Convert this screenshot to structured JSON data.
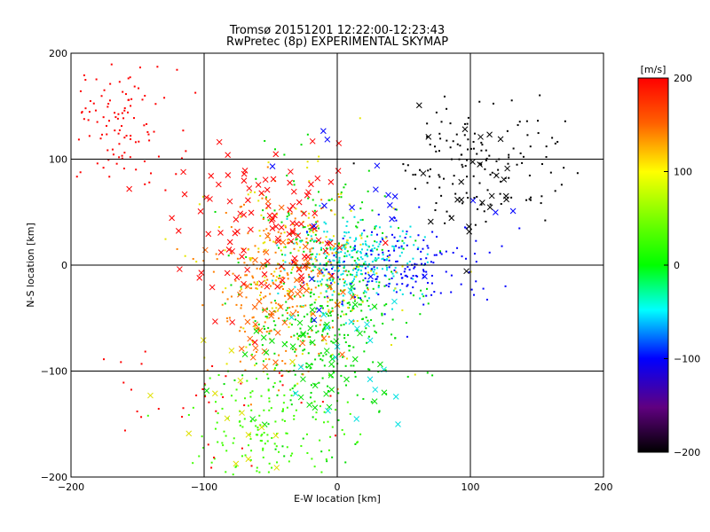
{
  "chart_data": {
    "type": "scatter",
    "title": "Tromsø 20151201 12:22:00-12:23:43",
    "subtitle": "RwPretec (8p) EXPERIMENTAL SKYMAP",
    "xlabel": "E-W location [km]",
    "ylabel": "N-S location [km]",
    "xlim": [
      -200,
      200
    ],
    "ylim": [
      -200,
      200
    ],
    "xticks": [
      -200,
      -100,
      0,
      100,
      200
    ],
    "yticks": [
      -200,
      -100,
      0,
      100,
      200
    ],
    "xtick_labels": [
      "−200",
      "−100",
      "0",
      "100",
      "200"
    ],
    "ytick_labels": [
      "−200",
      "−100",
      "0",
      "100",
      "200"
    ],
    "grid": true,
    "colorbar": {
      "label": "[m/s]",
      "range": [
        -200,
        200
      ],
      "ticks": [
        200,
        100,
        0,
        -100,
        -200
      ],
      "tick_labels": [
        "200",
        "100",
        "0",
        "−100",
        "−200"
      ]
    },
    "clusters": [
      {
        "name": "cluster-red-nw",
        "marker": "dot",
        "color": "#ff0000",
        "cx": -165,
        "cy": 130,
        "sx": 22,
        "sy": 28,
        "n": 110
      },
      {
        "name": "cluster-black-ne",
        "marker": "dot",
        "color": "#000000",
        "cx": 110,
        "cy": 100,
        "sx": 30,
        "sy": 30,
        "n": 140
      },
      {
        "name": "cluster-green-center",
        "marker": "dot",
        "color": "#00dd00",
        "cx": -10,
        "cy": -40,
        "sx": 30,
        "sy": 55,
        "n": 420
      },
      {
        "name": "cluster-cyan-center",
        "marker": "dot",
        "color": "#00e0e0",
        "cx": 15,
        "cy": 5,
        "sx": 25,
        "sy": 18,
        "n": 240
      },
      {
        "name": "cluster-blue-center",
        "marker": "dot",
        "color": "#0000ff",
        "cx": 50,
        "cy": 0,
        "sx": 35,
        "sy": 20,
        "n": 170
      },
      {
        "name": "cluster-orange-center",
        "marker": "dot",
        "color": "#ff8000",
        "cx": -45,
        "cy": -20,
        "sx": 25,
        "sy": 40,
        "n": 220
      },
      {
        "name": "cluster-yellow-center",
        "marker": "dot",
        "color": "#e6e600",
        "cx": -25,
        "cy": -10,
        "sx": 35,
        "sy": 45,
        "n": 180
      },
      {
        "name": "cluster-green-south",
        "marker": "dot",
        "color": "#40ff00",
        "cx": -50,
        "cy": -150,
        "sx": 30,
        "sy": 30,
        "n": 160
      },
      {
        "name": "cluster-red-xmarks",
        "marker": "x",
        "color": "#ff0000",
        "cx": -50,
        "cy": 30,
        "sx": 35,
        "sy": 35,
        "n": 110
      },
      {
        "name": "cluster-orange-xmarks",
        "marker": "x",
        "color": "#ff6000",
        "cx": -40,
        "cy": -30,
        "sx": 25,
        "sy": 35,
        "n": 50
      },
      {
        "name": "cluster-green-xmarks",
        "marker": "x",
        "color": "#00e000",
        "cx": -20,
        "cy": -90,
        "sx": 25,
        "sy": 30,
        "n": 40
      },
      {
        "name": "cluster-black-xmarks",
        "marker": "x",
        "color": "#000000",
        "cx": 95,
        "cy": 80,
        "sx": 30,
        "sy": 30,
        "n": 25
      },
      {
        "name": "cluster-blue-xmarks",
        "marker": "x",
        "color": "#0000ff",
        "cx": 20,
        "cy": 40,
        "sx": 60,
        "sy": 50,
        "n": 20
      },
      {
        "name": "cluster-yellow-xmarks",
        "marker": "x",
        "color": "#e0e000",
        "cx": -70,
        "cy": -130,
        "sx": 30,
        "sy": 40,
        "n": 15
      },
      {
        "name": "cluster-cyan-xmarks",
        "marker": "x",
        "color": "#00e0e0",
        "cx": 20,
        "cy": -70,
        "sx": 20,
        "sy": 40,
        "n": 20
      },
      {
        "name": "cluster-red-sparse",
        "marker": "dot",
        "color": "#ff0000",
        "cx": -110,
        "cy": -120,
        "sx": 40,
        "sy": 35,
        "n": 35
      }
    ]
  }
}
